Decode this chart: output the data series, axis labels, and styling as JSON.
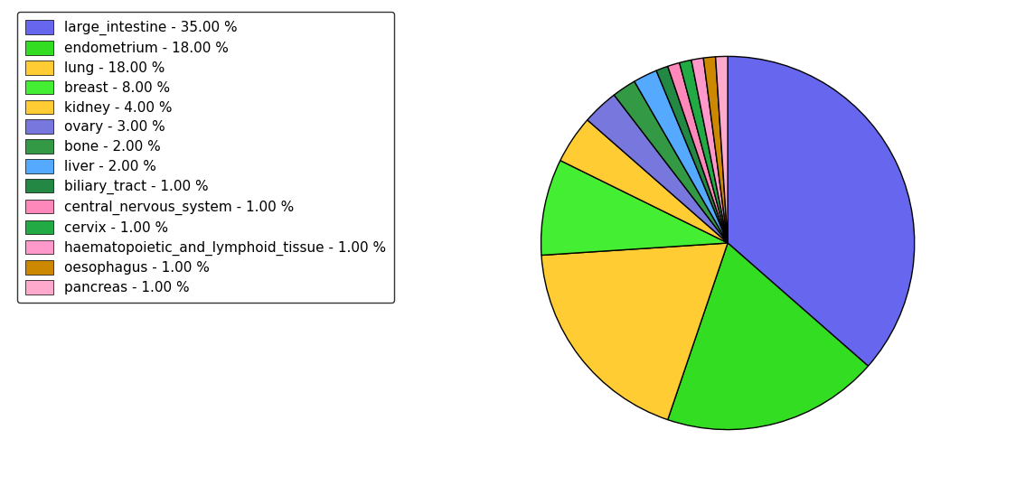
{
  "labels": [
    "large_intestine",
    "endometrium",
    "lung",
    "breast",
    "kidney",
    "ovary",
    "bone",
    "liver",
    "biliary_tract",
    "central_nervous_system",
    "cervix",
    "haematopoietic_and_lymphoid_tissue",
    "oesophagus",
    "pancreas"
  ],
  "values": [
    35,
    18,
    18,
    8,
    4,
    3,
    2,
    2,
    1,
    1,
    1,
    1,
    1,
    1
  ],
  "colors": [
    "#6666ee",
    "#33dd22",
    "#ffcc33",
    "#44ee33",
    "#ffcc33",
    "#7777dd",
    "#339944",
    "#55aaff",
    "#228844",
    "#ff88bb",
    "#22aa44",
    "#ff99cc",
    "#cc8800",
    "#ffaacc"
  ],
  "legend_labels": [
    "large_intestine - 35.00 %",
    "endometrium - 18.00 %",
    "lung - 18.00 %",
    "breast - 8.00 %",
    "kidney - 4.00 %",
    "ovary - 3.00 %",
    "bone - 2.00 %",
    "liver - 2.00 %",
    "biliary_tract - 1.00 %",
    "central_nervous_system - 1.00 %",
    "cervix - 1.00 %",
    "haematopoietic_and_lymphoid_tissue - 1.00 %",
    "oesophagus - 1.00 %",
    "pancreas - 1.00 %"
  ],
  "startangle": 90,
  "figsize": [
    11.34,
    5.38
  ],
  "dpi": 100
}
